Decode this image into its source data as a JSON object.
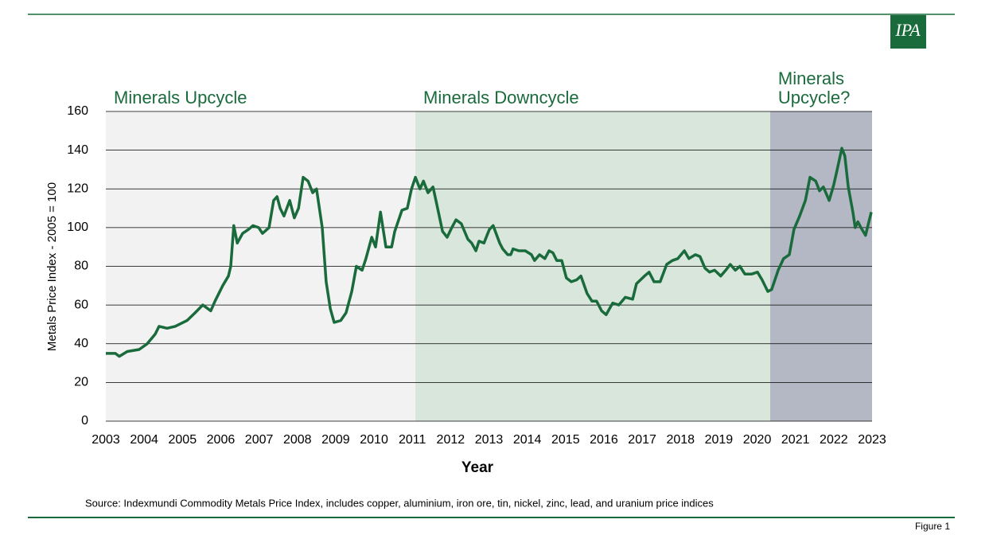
{
  "logo": "IPA",
  "footer": {
    "source": "Source: Indexmundi Commodity Metals Price Index, includes copper, aluminium, iron ore, tin, nickel, zinc, lead, and uranium price indices",
    "figure": "Figure 1"
  },
  "chart_data": {
    "type": "line",
    "x_label": "Year",
    "y_label": "Metals Price Index - 2005 = 100",
    "xlim": [
      2003,
      2023
    ],
    "xticks": [
      2003,
      2004,
      2005,
      2006,
      2007,
      2008,
      2009,
      2010,
      2011,
      2012,
      2013,
      2014,
      2015,
      2016,
      2017,
      2018,
      2019,
      2020,
      2021,
      2022,
      2023
    ],
    "ylim": [
      0,
      160
    ],
    "yticks": [
      0,
      20,
      40,
      60,
      80,
      100,
      120,
      140,
      160
    ],
    "grid": true,
    "regions": [
      {
        "label_lines": [
          "Minerals Upcycle"
        ],
        "start": 2003,
        "end": 2011.08,
        "color": "#f2f2f2"
      },
      {
        "label_lines": [
          "Minerals Downcycle"
        ],
        "start": 2011.08,
        "end": 2020.34,
        "color": "#d9e6dc"
      },
      {
        "label_lines": [
          "Minerals",
          "Upcycle?"
        ],
        "start": 2020.34,
        "end": 2023,
        "color": "#b3b8c4"
      }
    ],
    "region_label_color": "#1a6b3c",
    "x": [
      2003.0,
      2003.25,
      2003.35,
      2003.56,
      2003.87,
      2004.08,
      2004.29,
      2004.39,
      2004.6,
      2004.81,
      2005.12,
      2005.33,
      2005.53,
      2005.74,
      2005.85,
      2006.05,
      2006.2,
      2006.26,
      2006.34,
      2006.43,
      2006.57,
      2006.72,
      2006.84,
      2006.99,
      2007.09,
      2007.26,
      2007.38,
      2007.47,
      2007.55,
      2007.65,
      2007.8,
      2007.92,
      2008.03,
      2008.15,
      2008.28,
      2008.4,
      2008.5,
      2008.65,
      2008.75,
      2008.86,
      2008.96,
      2009.13,
      2009.27,
      2009.42,
      2009.54,
      2009.69,
      2009.79,
      2009.94,
      2010.04,
      2010.17,
      2010.31,
      2010.46,
      2010.54,
      2010.73,
      2010.87,
      2010.98,
      2011.08,
      2011.2,
      2011.29,
      2011.41,
      2011.54,
      2011.66,
      2011.79,
      2011.91,
      2012.03,
      2012.14,
      2012.28,
      2012.45,
      2012.55,
      2012.66,
      2012.74,
      2012.87,
      2013.01,
      2013.11,
      2013.28,
      2013.36,
      2013.49,
      2013.57,
      2013.63,
      2013.78,
      2013.95,
      2014.11,
      2014.19,
      2014.32,
      2014.46,
      2014.57,
      2014.67,
      2014.77,
      2014.9,
      2015.02,
      2015.15,
      2015.29,
      2015.4,
      2015.56,
      2015.69,
      2015.81,
      2015.94,
      2016.06,
      2016.23,
      2016.39,
      2016.56,
      2016.75,
      2016.85,
      2017.06,
      2017.18,
      2017.31,
      2017.47,
      2017.64,
      2017.79,
      2017.93,
      2018.1,
      2018.22,
      2018.39,
      2018.51,
      2018.64,
      2018.76,
      2018.89,
      2019.05,
      2019.18,
      2019.3,
      2019.43,
      2019.55,
      2019.68,
      2019.86,
      2020.01,
      2020.13,
      2020.28,
      2020.38,
      2020.55,
      2020.69,
      2020.84,
      2020.96,
      2021.11,
      2021.26,
      2021.38,
      2021.53,
      2021.63,
      2021.73,
      2021.88,
      2022.0,
      2022.09,
      2022.21,
      2022.29,
      2022.38,
      2022.5,
      2022.56,
      2022.63,
      2022.71,
      2022.83,
      2022.98
    ],
    "series": [
      {
        "name": "Metals Price Index",
        "color": "#1a6b3c",
        "values": [
          35,
          35,
          33.5,
          36,
          37,
          40,
          45,
          49,
          48,
          49,
          52,
          56,
          60,
          57,
          62,
          70,
          75,
          80,
          101,
          92,
          97,
          99,
          101,
          100,
          97,
          100,
          114,
          116,
          110,
          106,
          114,
          105,
          110,
          126,
          124,
          118,
          120,
          100,
          72,
          58,
          51,
          52,
          56,
          67,
          80,
          78,
          84,
          95,
          90,
          108,
          90,
          90,
          98,
          109,
          110,
          120,
          126,
          120,
          124,
          118,
          121,
          110,
          98,
          95,
          100,
          104,
          102,
          94,
          92,
          88,
          93,
          92,
          99,
          101,
          92,
          89,
          86,
          86,
          89,
          88,
          88,
          86,
          83,
          86,
          84,
          88,
          87,
          83,
          83,
          74,
          72,
          73,
          75,
          66,
          62,
          62,
          57,
          55,
          61,
          60,
          64,
          63,
          71,
          75,
          77,
          72,
          72,
          81,
          83,
          84,
          88,
          84,
          86,
          85,
          79,
          77,
          78,
          75,
          78,
          81,
          78,
          80,
          76,
          76,
          77,
          73,
          67,
          68,
          78,
          84,
          86,
          99,
          106,
          114,
          126,
          124,
          119,
          121,
          114,
          122,
          130,
          141,
          137,
          121,
          108,
          100,
          103,
          100,
          96,
          108
        ]
      }
    ]
  }
}
